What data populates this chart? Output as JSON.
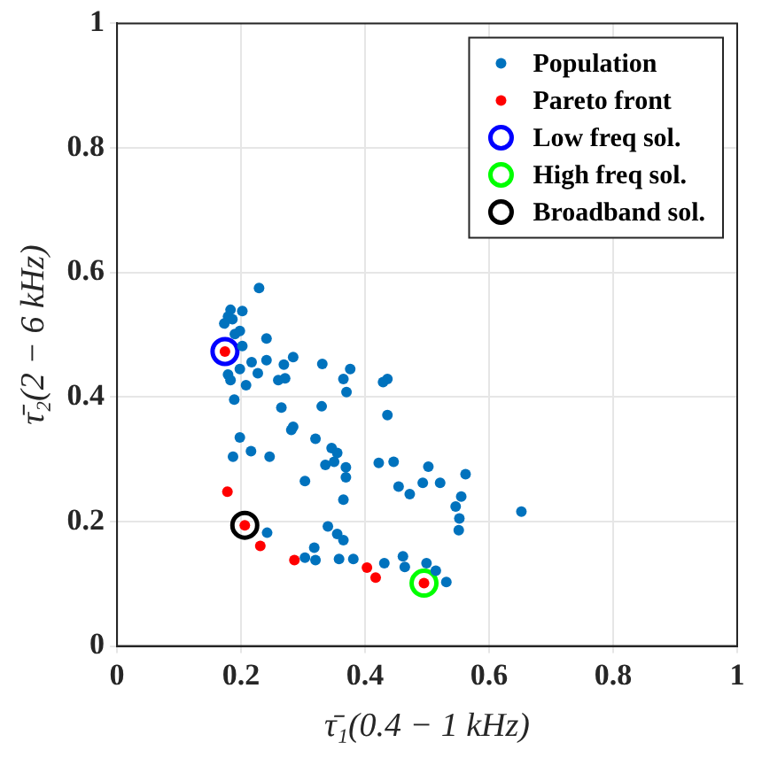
{
  "chart_data": {
    "type": "scatter",
    "xlabel": "τ̄₁(0.4 − 1 kHz)",
    "ylabel": "τ̄₂(2 − 6 kHz)",
    "xlim": [
      0,
      1
    ],
    "ylim": [
      0,
      1
    ],
    "xticks": [
      0,
      0.2,
      0.4,
      0.6,
      0.8,
      1
    ],
    "yticks": [
      0,
      0.2,
      0.4,
      0.6,
      0.8,
      1
    ],
    "grid": true,
    "legend": "top right",
    "marker": "circle",
    "series": [
      {
        "name": "Population",
        "color": "#0072bd",
        "x": [
          0.229,
          0.183,
          0.202,
          0.179,
          0.186,
          0.173,
          0.198,
          0.19,
          0.241,
          0.202,
          0.217,
          0.241,
          0.284,
          0.269,
          0.331,
          0.376,
          0.365,
          0.198,
          0.227,
          0.179,
          0.183,
          0.208,
          0.271,
          0.26,
          0.37,
          0.436,
          0.429,
          0.189,
          0.265,
          0.33,
          0.436,
          0.284,
          0.281,
          0.198,
          0.32,
          0.346,
          0.355,
          0.187,
          0.216,
          0.246,
          0.336,
          0.35,
          0.369,
          0.422,
          0.446,
          0.369,
          0.303,
          0.454,
          0.472,
          0.365,
          0.493,
          0.521,
          0.555,
          0.546,
          0.552,
          0.551,
          0.242,
          0.34,
          0.355,
          0.365,
          0.318,
          0.303,
          0.32,
          0.358,
          0.381,
          0.461,
          0.431,
          0.464,
          0.499,
          0.514,
          0.531,
          0.502,
          0.562,
          0.652
        ],
        "values": [
          0.575,
          0.54,
          0.538,
          0.529,
          0.525,
          0.518,
          0.506,
          0.501,
          0.494,
          0.482,
          0.456,
          0.459,
          0.464,
          0.452,
          0.453,
          0.445,
          0.429,
          0.445,
          0.438,
          0.436,
          0.427,
          0.419,
          0.43,
          0.427,
          0.408,
          0.429,
          0.424,
          0.396,
          0.383,
          0.385,
          0.371,
          0.352,
          0.347,
          0.335,
          0.333,
          0.318,
          0.31,
          0.304,
          0.313,
          0.304,
          0.291,
          0.296,
          0.287,
          0.294,
          0.296,
          0.271,
          0.265,
          0.256,
          0.244,
          0.235,
          0.262,
          0.262,
          0.24,
          0.224,
          0.205,
          0.186,
          0.182,
          0.192,
          0.18,
          0.17,
          0.158,
          0.142,
          0.138,
          0.14,
          0.14,
          0.144,
          0.133,
          0.127,
          0.133,
          0.121,
          0.103,
          0.288,
          0.276,
          0.216
        ]
      },
      {
        "name": "Pareto front",
        "color": "#ff0000",
        "x": [
          0.174,
          0.178,
          0.206,
          0.231,
          0.286,
          0.403,
          0.417,
          0.495
        ],
        "values": [
          0.473,
          0.248,
          0.194,
          0.161,
          0.138,
          0.126,
          0.11,
          0.101
        ]
      },
      {
        "name": "Low freq sol.",
        "color": "#0000ff",
        "marker": "circle",
        "x": [
          0.174
        ],
        "values": [
          0.473
        ]
      },
      {
        "name": "High freq sol.",
        "color": "#00ff00",
        "marker": "circle",
        "x": [
          0.495
        ],
        "values": [
          0.101
        ]
      },
      {
        "name": "Broadband sol.",
        "color": "#000000",
        "marker": "circle",
        "x": [
          0.206
        ],
        "values": [
          0.194
        ]
      }
    ]
  }
}
